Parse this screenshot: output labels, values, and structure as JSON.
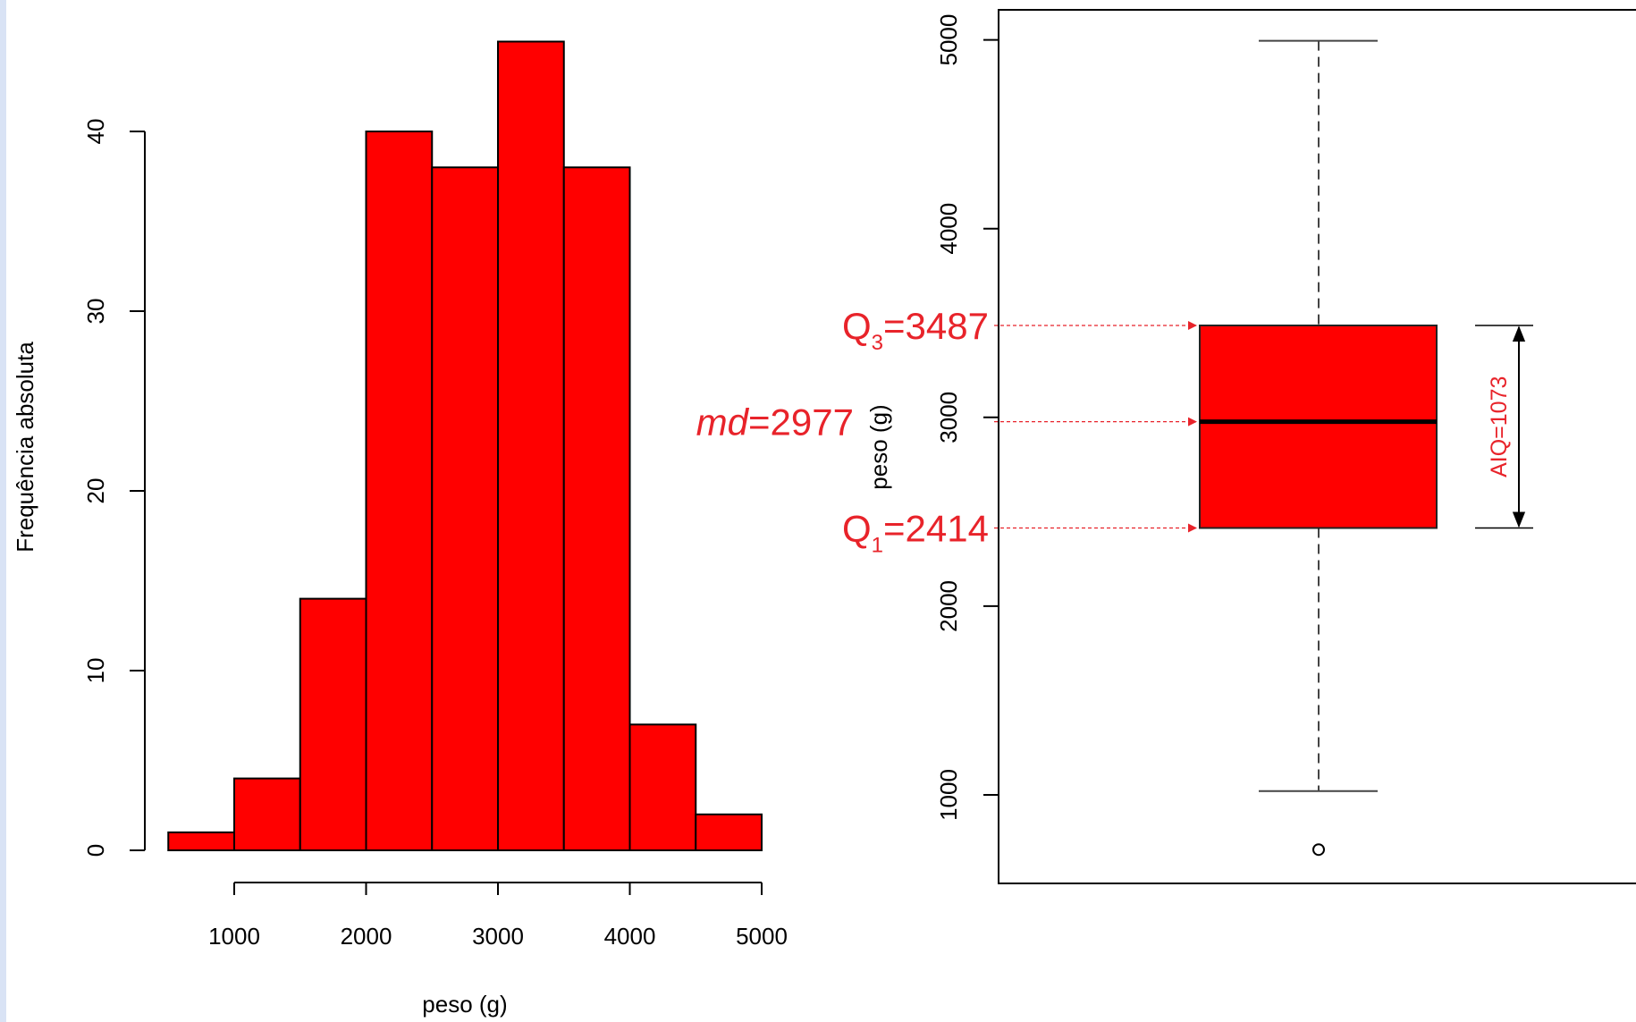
{
  "colors": {
    "bar_fill": "#ff0000",
    "annotation": "#e8232a",
    "frame": "#000000",
    "page_edge": "#d9e3f5"
  },
  "chart_data": [
    {
      "type": "bar",
      "title": "",
      "xlabel": "peso (g)",
      "ylabel": "Frequência absoluta",
      "bin_edges": [
        500,
        1000,
        1500,
        2000,
        2500,
        3000,
        3500,
        4000,
        4500,
        5000
      ],
      "values": [
        1,
        4,
        14,
        40,
        38,
        45,
        38,
        7,
        2
      ],
      "xticks": [
        1000,
        2000,
        3000,
        4000,
        5000
      ],
      "yticks": [
        0,
        10,
        20,
        30,
        40
      ],
      "xlim": [
        500,
        5000
      ],
      "ylim": [
        0,
        45
      ],
      "grid": false
    },
    {
      "type": "boxplot",
      "title": "",
      "ylabel": "peso (g)",
      "yticks": [
        1000,
        2000,
        3000,
        4000,
        5000
      ],
      "ylim": [
        700,
        5170
      ],
      "whisker_low": 1020,
      "q1": 2414,
      "median": 2977,
      "q3": 3487,
      "whisker_high": 4995,
      "outliers": [
        710
      ],
      "grid": false,
      "annotations": {
        "q3": {
          "base": "Q",
          "sub": "3",
          "rest": "=3487"
        },
        "median": {
          "italic": "md",
          "rest": "=2977"
        },
        "q1": {
          "base": "Q",
          "sub": "1",
          "rest": "=2414"
        },
        "iqr": "AIQ=1073"
      }
    }
  ]
}
